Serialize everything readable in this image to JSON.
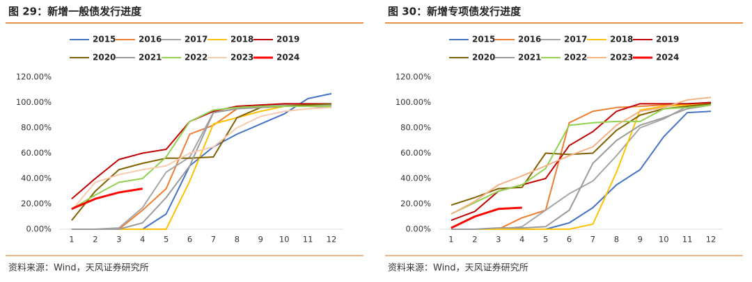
{
  "chart_data": [
    {
      "type": "line",
      "title": "图 29：新增一般债发行进度",
      "source": "资料来源：Wind，天风证券研究所",
      "categories": [
        "1",
        "2",
        "3",
        "4",
        "5",
        "6",
        "7",
        "8",
        "9",
        "10",
        "11",
        "12"
      ],
      "ylim": [
        0,
        120
      ],
      "yticks": [
        {
          "value": 0,
          "label": "0.00%"
        },
        {
          "value": 20,
          "label": "20.00%"
        },
        {
          "value": 40,
          "label": "40.00%"
        },
        {
          "value": 60,
          "label": "60.00%"
        },
        {
          "value": 80,
          "label": "80.00%"
        },
        {
          "value": 100,
          "label": "100.00%"
        },
        {
          "value": 120,
          "label": "120.00%"
        }
      ],
      "series": [
        {
          "name": "2015",
          "color": "#4472c4",
          "values": [
            0,
            0,
            0,
            0,
            12,
            50,
            65,
            75,
            83,
            91,
            103,
            107
          ]
        },
        {
          "name": "2016",
          "color": "#ed7d31",
          "values": [
            0,
            0,
            0,
            15,
            32,
            75,
            82,
            95,
            97,
            98,
            98,
            98
          ]
        },
        {
          "name": "2017",
          "color": "#a5a5a5",
          "values": [
            0,
            0,
            1,
            17,
            45,
            57,
            92,
            95,
            97,
            98,
            98,
            98
          ]
        },
        {
          "name": "2018",
          "color": "#ffc000",
          "values": [
            0,
            0,
            0,
            0,
            0,
            38,
            83,
            88,
            93,
            97,
            98,
            99
          ]
        },
        {
          "name": "2019",
          "color": "#c00000",
          "values": [
            24,
            40,
            55,
            60,
            63,
            85,
            93,
            97,
            98,
            99,
            99,
            99
          ]
        },
        {
          "name": "2020",
          "color": "#806000",
          "values": [
            7,
            30,
            47,
            52,
            56,
            56,
            57,
            88,
            96,
            97,
            98,
            99
          ]
        },
        {
          "name": "2021",
          "color": "#9a9a9a",
          "values": [
            0,
            0,
            0,
            5,
            25,
            50,
            92,
            95,
            96,
            97,
            97,
            96
          ]
        },
        {
          "name": "2022",
          "color": "#92d050",
          "values": [
            16,
            27,
            37,
            40,
            57,
            85,
            94,
            96,
            97,
            97,
            97,
            97
          ]
        },
        {
          "name": "2023",
          "color": "#f8cbad",
          "values": [
            15,
            37,
            43,
            47,
            50,
            60,
            65,
            80,
            89,
            93,
            95,
            96
          ]
        },
        {
          "name": "2024",
          "color": "#ff0000",
          "values": [
            16,
            24,
            29,
            32,
            null,
            null,
            null,
            null,
            null,
            null,
            null,
            null
          ]
        }
      ]
    },
    {
      "type": "line",
      "title": "图 30：新增专项债发行进度",
      "source": "资料来源：Wind，天风证券研究所",
      "categories": [
        "1",
        "2",
        "3",
        "4",
        "5",
        "6",
        "7",
        "8",
        "9",
        "10",
        "11",
        "12"
      ],
      "ylim": [
        0,
        120
      ],
      "yticks": [
        {
          "value": 0,
          "label": "0.00%"
        },
        {
          "value": 20,
          "label": "20.00%"
        },
        {
          "value": 40,
          "label": "40.00%"
        },
        {
          "value": 60,
          "label": "60.00%"
        },
        {
          "value": 80,
          "label": "80.00%"
        },
        {
          "value": 100,
          "label": "100.00%"
        },
        {
          "value": 120,
          "label": "120.00%"
        }
      ],
      "series": [
        {
          "name": "2015",
          "color": "#4472c4",
          "values": [
            0,
            0,
            0,
            0,
            0,
            5,
            17,
            35,
            47,
            73,
            92,
            93
          ]
        },
        {
          "name": "2016",
          "color": "#ed7d31",
          "values": [
            0,
            0,
            0,
            9,
            15,
            84,
            93,
            96,
            97,
            98,
            99,
            99
          ]
        },
        {
          "name": "2017",
          "color": "#a5a5a5",
          "values": [
            0,
            0,
            0,
            2,
            15,
            28,
            38,
            58,
            80,
            87,
            97,
            98
          ]
        },
        {
          "name": "2018",
          "color": "#ffc000",
          "values": [
            0,
            0,
            0,
            0,
            0,
            0,
            4,
            45,
            94,
            97,
            98,
            99
          ]
        },
        {
          "name": "2019",
          "color": "#c00000",
          "values": [
            7,
            14,
            30,
            35,
            40,
            66,
            77,
            93,
            99,
            99,
            99,
            100
          ]
        },
        {
          "name": "2020",
          "color": "#806000",
          "values": [
            19,
            25,
            32,
            33,
            60,
            59,
            60,
            78,
            90,
            95,
            97,
            99
          ]
        },
        {
          "name": "2021",
          "color": "#9a9a9a",
          "values": [
            0,
            0,
            1,
            1,
            2,
            15,
            52,
            70,
            82,
            88,
            95,
            98
          ]
        },
        {
          "name": "2022",
          "color": "#92d050",
          "values": [
            12,
            21,
            30,
            35,
            48,
            82,
            84,
            85,
            85,
            95,
            96,
            98
          ]
        },
        {
          "name": "2023",
          "color": "#f4b183",
          "values": [
            12,
            22,
            35,
            42,
            50,
            58,
            65,
            82,
            93,
            96,
            102,
            104
          ]
        },
        {
          "name": "2024",
          "color": "#ff0000",
          "values": [
            1,
            10,
            16,
            17,
            null,
            null,
            null,
            null,
            null,
            null,
            null,
            null
          ]
        }
      ]
    }
  ]
}
